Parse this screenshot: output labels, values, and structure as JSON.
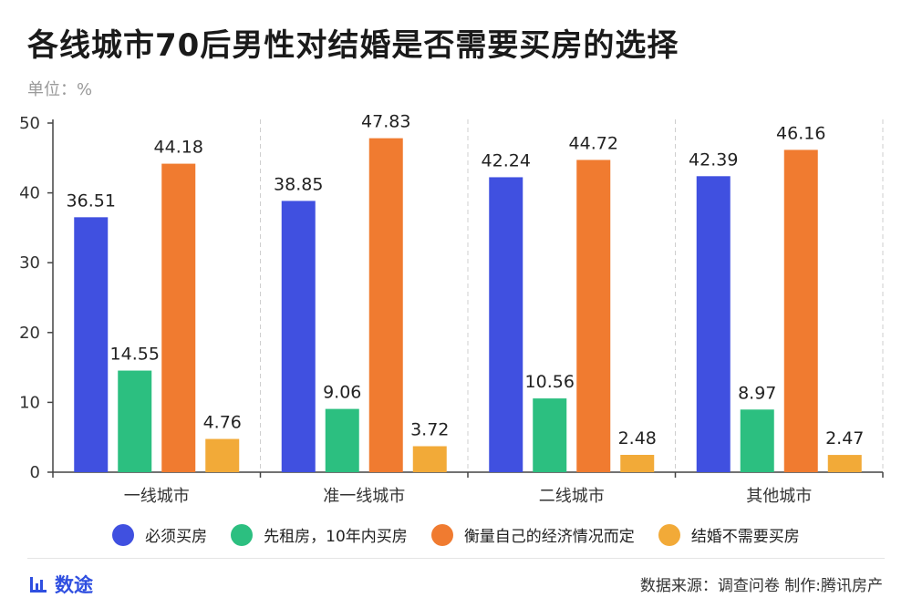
{
  "header": {
    "title": "各线城市70后男性对结婚是否需要买房的选择",
    "unit": "单位：%"
  },
  "footer": {
    "brand": "数途",
    "brand_icon": "bar-chart-icon",
    "source": "数据来源：调查问卷  制作:腾讯房产"
  },
  "chart_data": {
    "type": "bar",
    "title": "各线城市70后男性对结婚是否需要买房的选择",
    "ylabel": "",
    "xlabel": "",
    "ylim": [
      0,
      50
    ],
    "yticks": [
      0,
      10,
      20,
      30,
      40,
      50
    ],
    "categories": [
      "一线城市",
      "准一线城市",
      "二线城市",
      "其他城市"
    ],
    "series": [
      {
        "name": "必须买房",
        "color": "#4050e0",
        "values": [
          36.51,
          38.85,
          42.24,
          42.39
        ]
      },
      {
        "name": "先租房，10年内买房",
        "color": "#2cbf80",
        "values": [
          14.55,
          9.06,
          10.56,
          8.97
        ]
      },
      {
        "name": "衡量自己的经济情况而定",
        "color": "#f07b30",
        "values": [
          44.18,
          47.83,
          44.72,
          46.16
        ]
      },
      {
        "name": "结婚不需要买房",
        "color": "#f2aa38",
        "values": [
          4.76,
          3.72,
          2.48,
          2.47
        ]
      }
    ],
    "grid": "vertical dashed separators",
    "legend": "bottom"
  }
}
